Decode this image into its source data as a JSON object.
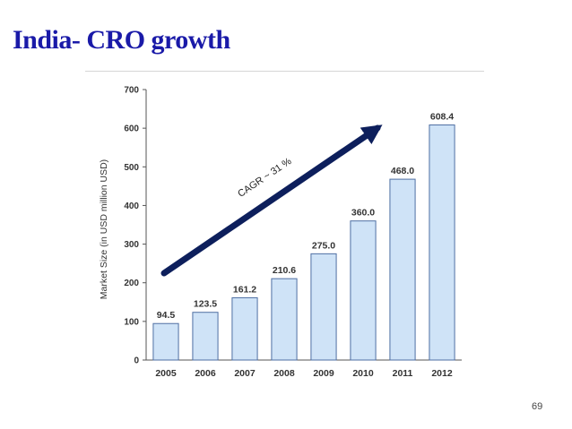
{
  "slide": {
    "title": "India- CRO growth",
    "page_number": "69"
  },
  "chart_data": {
    "type": "bar",
    "title": "",
    "xlabel": "",
    "ylabel": "Market Size (in USD million USD)",
    "categories": [
      "2005",
      "2006",
      "2007",
      "2008",
      "2009",
      "2010",
      "2011",
      "2012"
    ],
    "values": [
      94.5,
      123.5,
      161.2,
      210.6,
      275.0,
      360.0,
      468.0,
      608.4
    ],
    "value_labels": [
      "94.5",
      "123.5",
      "161.2",
      "210.6",
      "275.0",
      "360.0",
      "468.0",
      "608.4"
    ],
    "ylim": [
      0,
      700
    ],
    "yticks": [
      0,
      100,
      200,
      300,
      400,
      500,
      600,
      700
    ],
    "grid": false,
    "legend": "none",
    "annotation": "CAGR ~ 31 %",
    "colors": {
      "bar_fill": "#cfe3f7",
      "bar_stroke": "#4f6fa3",
      "arrow": "#0d1f5c",
      "title": "#1a1aa8"
    }
  }
}
